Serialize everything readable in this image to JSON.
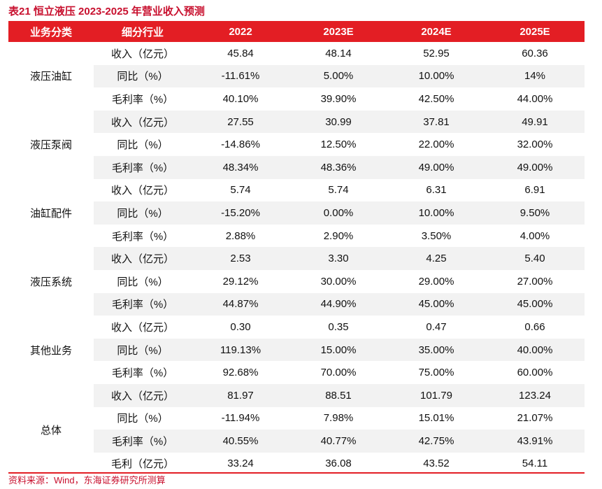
{
  "title": "表21  恒立液压 2023-2025 年营业收入预测",
  "headers": [
    "业务分类",
    "细分行业",
    "2022",
    "2023E",
    "2024E",
    "2025E"
  ],
  "groups": [
    {
      "name": "液压油缸",
      "rows": [
        {
          "label": "收入（亿元）",
          "values": [
            "45.84",
            "48.14",
            "52.95",
            "60.36"
          ]
        },
        {
          "label": "同比（%）",
          "values": [
            "-11.61%",
            "5.00%",
            "10.00%",
            "14%"
          ]
        },
        {
          "label": "毛利率（%）",
          "values": [
            "40.10%",
            "39.90%",
            "42.50%",
            "44.00%"
          ]
        }
      ]
    },
    {
      "name": "液压泵阀",
      "rows": [
        {
          "label": "收入（亿元）",
          "values": [
            "27.55",
            "30.99",
            "37.81",
            "49.91"
          ]
        },
        {
          "label": "同比（%）",
          "values": [
            "-14.86%",
            "12.50%",
            "22.00%",
            "32.00%"
          ]
        },
        {
          "label": "毛利率（%）",
          "values": [
            "48.34%",
            "48.36%",
            "49.00%",
            "49.00%"
          ]
        }
      ]
    },
    {
      "name": "油缸配件",
      "rows": [
        {
          "label": "收入（亿元）",
          "values": [
            "5.74",
            "5.74",
            "6.31",
            "6.91"
          ]
        },
        {
          "label": "同比（%）",
          "values": [
            "-15.20%",
            "0.00%",
            "10.00%",
            "9.50%"
          ]
        },
        {
          "label": "毛利率（%）",
          "values": [
            "2.88%",
            "2.90%",
            "3.50%",
            "4.00%"
          ]
        }
      ]
    },
    {
      "name": "液压系统",
      "rows": [
        {
          "label": "收入（亿元）",
          "values": [
            "2.53",
            "3.30",
            "4.25",
            "5.40"
          ]
        },
        {
          "label": "同比（%）",
          "values": [
            "29.12%",
            "30.00%",
            "29.00%",
            "27.00%"
          ]
        },
        {
          "label": "毛利率（%）",
          "values": [
            "44.87%",
            "44.90%",
            "45.00%",
            "45.00%"
          ]
        }
      ]
    },
    {
      "name": "其他业务",
      "rows": [
        {
          "label": "收入（亿元）",
          "values": [
            "0.30",
            "0.35",
            "0.47",
            "0.66"
          ]
        },
        {
          "label": "同比（%）",
          "values": [
            "119.13%",
            "15.00%",
            "35.00%",
            "40.00%"
          ]
        },
        {
          "label": "毛利率（%）",
          "values": [
            "92.68%",
            "70.00%",
            "75.00%",
            "60.00%"
          ]
        }
      ]
    },
    {
      "name": "总体",
      "rows": [
        {
          "label": "收入（亿元）",
          "values": [
            "81.97",
            "88.51",
            "101.79",
            "123.24"
          ]
        },
        {
          "label": "同比（%）",
          "values": [
            "-11.94%",
            "7.98%",
            "15.01%",
            "21.07%"
          ]
        },
        {
          "label": "毛利率（%）",
          "values": [
            "40.55%",
            "40.77%",
            "42.75%",
            "43.91%"
          ]
        },
        {
          "label": "毛利（亿元）",
          "values": [
            "33.24",
            "36.08",
            "43.52",
            "54.11"
          ]
        }
      ]
    }
  ],
  "source": "资料来源：Wind，东海证券研究所测算"
}
